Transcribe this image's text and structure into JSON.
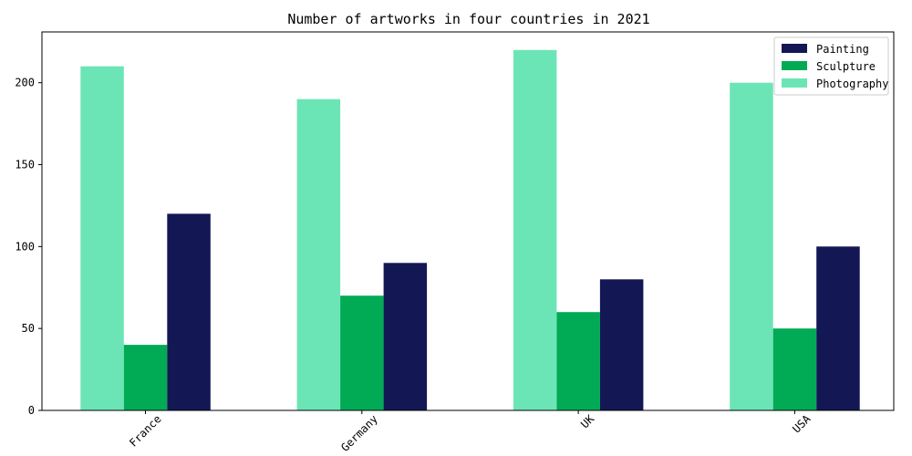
{
  "chart_data": {
    "type": "bar",
    "title": "Number of artworks in four countries in 2021",
    "xlabel": "",
    "ylabel": "",
    "categories": [
      "France",
      "Germany",
      "UK",
      "USA"
    ],
    "series": [
      {
        "name": "Painting",
        "values": [
          120,
          90,
          80,
          100
        ],
        "color": "#131754"
      },
      {
        "name": "Sculpture",
        "values": [
          40,
          70,
          60,
          50
        ],
        "color": "#01ab55"
      },
      {
        "name": "Photography",
        "values": [
          210,
          190,
          220,
          200
        ],
        "color": "#6ce5b6"
      }
    ],
    "draw_order": [
      "Photography",
      "Sculpture",
      "Painting"
    ],
    "ylim": [
      0,
      231
    ],
    "yticks": [
      0,
      50,
      100,
      150,
      200
    ],
    "xtick_rotation": 45,
    "grid": false,
    "legend_position": "top-right"
  }
}
